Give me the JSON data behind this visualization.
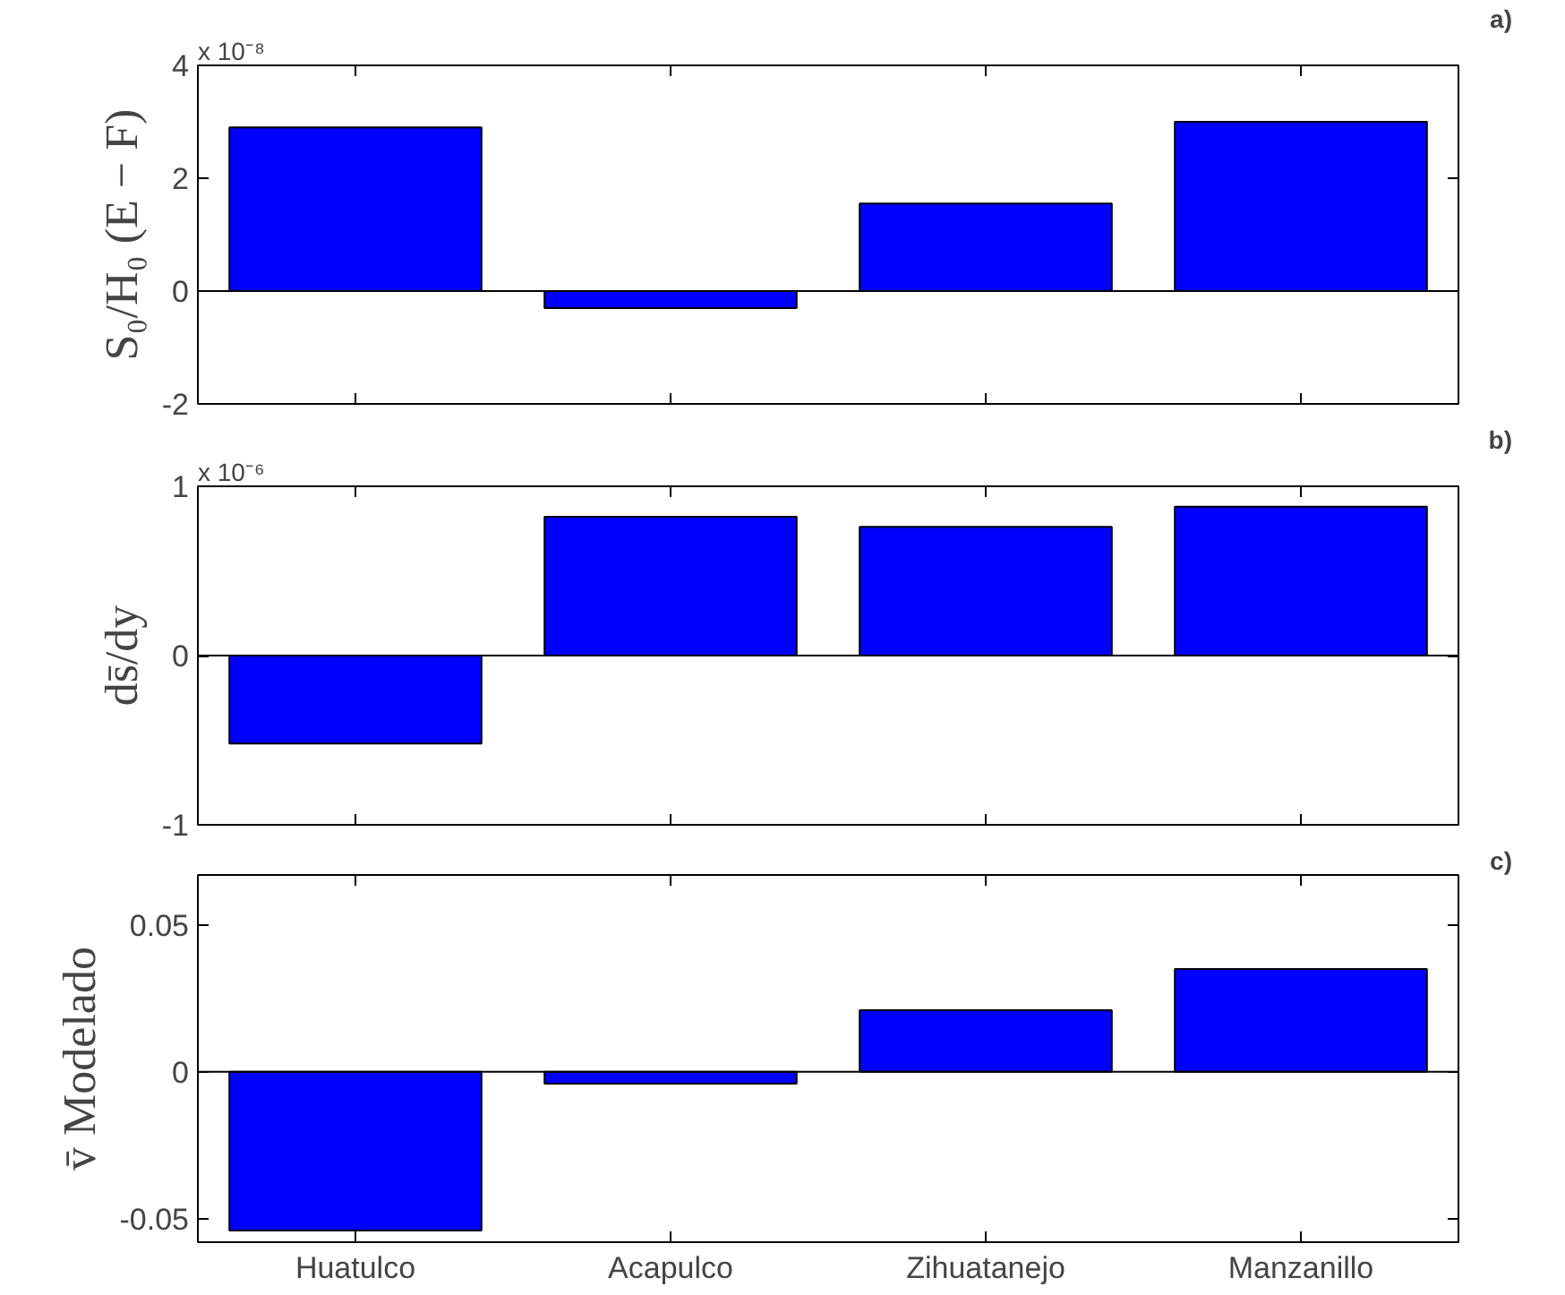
{
  "chart_data": [
    {
      "type": "bar",
      "categories": [
        null,
        null,
        null,
        null
      ],
      "ylabel": "S₀/H₀ (E − F)",
      "values": [
        2.9,
        -0.3,
        1.55,
        3.0
      ],
      "color": "#0000ff",
      "ylim": [
        -2,
        4
      ],
      "yticks": [
        -2,
        0,
        2,
        4
      ],
      "tick_labels": "y",
      "grid": false,
      "ref_lines": [
        {
          "axis": "y",
          "value": 0
        }
      ],
      "annotations": [
        "x 10⁻⁸",
        "a)"
      ]
    },
    {
      "type": "bar",
      "categories": [
        null,
        null,
        null,
        null
      ],
      "ylabel": "ds̄/dy",
      "values": [
        -0.52,
        0.82,
        0.76,
        0.88
      ],
      "color": "#0000ff",
      "ylim": [
        -1,
        1
      ],
      "yticks": [
        -1,
        0,
        1
      ],
      "tick_labels": "y",
      "grid": false,
      "ref_lines": [
        {
          "axis": "y",
          "value": 0
        }
      ],
      "annotations": [
        "x 10⁻⁶",
        "b)"
      ]
    },
    {
      "type": "bar",
      "categories": [
        "Huatulco",
        "Acapulco",
        "Zihuatanejo",
        "Manzanillo"
      ],
      "ylabel": "v̄ Modelado",
      "values": [
        -0.054,
        -0.004,
        0.021,
        0.035
      ],
      "color": "#0000ff",
      "ylim": [
        -0.058,
        0.067
      ],
      "yticks": [
        -0.05,
        0,
        0.05
      ],
      "grid": false,
      "ref_lines": [
        {
          "axis": "y",
          "value": 0
        }
      ],
      "annotations": [
        "c)"
      ]
    }
  ]
}
